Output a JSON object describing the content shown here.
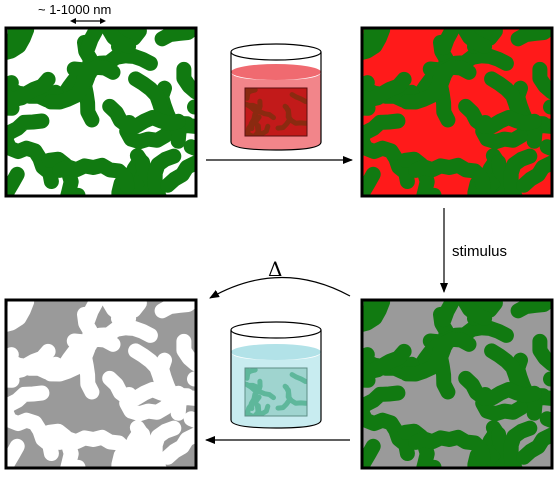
{
  "scale_label": "~ 1-1000 nm",
  "stimulus_label": "stimulus",
  "heat_label": "Δ",
  "colors": {
    "matrix_green": "#117a11",
    "pore_white": "#ffffff",
    "filled_red": "#ff1a1a",
    "converted_gray": "#9a9a9a",
    "final_light": "#ffffff",
    "beaker_red_liquid": "#f2858a",
    "beaker_blue_liquid": "#c8ecf0",
    "frame": "#000000"
  },
  "panels": [
    {
      "id": "template",
      "matrix": "matrix_green",
      "pores": "pore_white"
    },
    {
      "id": "infiltrated",
      "matrix": "matrix_green",
      "pores": "filled_red"
    },
    {
      "id": "cured",
      "matrix": "matrix_green",
      "pores": "converted_gray"
    },
    {
      "id": "inverse-replica",
      "matrix": "final_light",
      "pores": "converted_gray"
    }
  ]
}
